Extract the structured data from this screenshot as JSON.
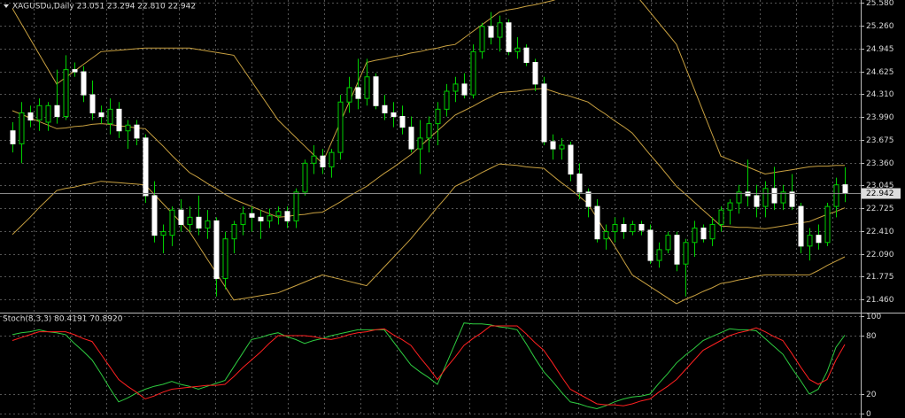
{
  "chart_data": [
    {
      "type": "candlestick",
      "title": "XAGUSDu,Daily  23.051 23.294 22.810 22.942",
      "open": [
        23.8,
        23.62,
        24.05,
        23.95,
        23.92,
        24.15,
        24.0,
        24.65,
        24.62,
        24.3,
        24.05,
        23.9,
        24.1,
        23.8,
        23.88,
        23.7,
        22.9,
        22.35,
        22.35,
        22.7,
        22.5,
        22.6,
        22.45,
        22.55,
        21.75,
        22.3,
        22.5,
        22.65,
        22.6,
        22.55,
        22.62,
        22.68,
        22.55,
        22.95,
        23.35,
        23.45,
        23.3,
        23.5,
        24.2,
        24.4,
        24.25,
        24.55,
        24.15,
        24.05,
        24.0,
        23.85,
        23.55,
        23.7,
        23.9,
        24.1,
        24.35,
        24.45,
        24.3,
        24.9,
        25.25,
        25.1,
        25.3,
        24.9,
        24.95,
        24.75,
        24.45,
        23.65,
        23.55,
        23.6,
        23.2,
        22.95,
        22.75,
        22.3,
        22.4,
        22.5,
        22.4,
        22.5,
        22.42,
        22.0,
        22.15,
        22.35,
        21.95,
        22.25,
        22.45,
        22.3,
        22.5,
        22.7,
        22.8,
        22.95,
        22.9,
        22.75,
        23.0,
        22.8,
        22.95,
        22.75,
        22.2,
        22.35,
        22.25,
        22.75,
        23.051
      ],
      "high": [
        23.92,
        24.2,
        24.15,
        24.25,
        24.2,
        24.65,
        24.85,
        24.75,
        24.7,
        24.5,
        24.15,
        24.25,
        24.2,
        23.95,
        23.95,
        23.75,
        23.1,
        22.5,
        22.75,
        22.85,
        22.75,
        22.9,
        22.7,
        22.6,
        22.4,
        22.55,
        22.75,
        22.75,
        22.7,
        22.72,
        22.75,
        22.75,
        23.0,
        23.4,
        23.6,
        23.55,
        23.55,
        24.3,
        24.55,
        24.8,
        24.8,
        24.6,
        24.3,
        24.2,
        24.15,
        24.0,
        23.95,
        24.0,
        24.2,
        24.45,
        24.55,
        24.6,
        25.0,
        25.3,
        25.45,
        25.4,
        25.35,
        25.1,
        25.0,
        24.8,
        24.55,
        23.75,
        23.7,
        23.65,
        23.35,
        23.0,
        22.85,
        22.5,
        22.6,
        22.6,
        22.55,
        22.55,
        22.5,
        22.25,
        22.4,
        22.4,
        22.3,
        22.55,
        22.5,
        22.6,
        22.75,
        22.85,
        23.05,
        23.4,
        23.05,
        23.1,
        23.3,
        23.05,
        23.2,
        22.8,
        22.45,
        22.5,
        22.8,
        23.15,
        23.294
      ],
      "low": [
        23.5,
        23.35,
        23.85,
        23.8,
        23.8,
        23.9,
        23.95,
        24.55,
        24.2,
        23.95,
        23.9,
        23.75,
        23.7,
        23.55,
        23.6,
        22.8,
        22.25,
        22.1,
        22.2,
        22.4,
        22.4,
        22.35,
        22.3,
        21.5,
        21.6,
        22.1,
        22.35,
        22.4,
        22.3,
        22.45,
        22.5,
        22.45,
        22.45,
        22.9,
        23.2,
        23.2,
        23.15,
        23.4,
        24.05,
        24.1,
        24.15,
        24.1,
        23.95,
        23.85,
        23.75,
        23.5,
        23.2,
        23.5,
        23.6,
        24.0,
        24.2,
        24.25,
        24.25,
        24.8,
        25.0,
        24.9,
        24.85,
        24.8,
        24.7,
        24.35,
        23.6,
        23.4,
        23.4,
        23.1,
        22.85,
        22.6,
        22.25,
        22.15,
        22.25,
        22.3,
        22.35,
        22.35,
        21.95,
        21.9,
        22.1,
        21.85,
        21.5,
        22.05,
        22.25,
        22.2,
        22.4,
        22.5,
        22.65,
        22.75,
        22.6,
        22.6,
        22.7,
        22.7,
        22.7,
        22.1,
        22.0,
        22.15,
        22.2,
        22.6,
        22.81
      ],
      "close": [
        23.62,
        24.05,
        23.95,
        24.15,
        24.15,
        24.0,
        24.65,
        24.62,
        24.3,
        24.05,
        24.0,
        24.1,
        23.8,
        23.88,
        23.7,
        22.9,
        22.35,
        22.4,
        22.7,
        22.5,
        22.6,
        22.45,
        22.55,
        21.75,
        22.3,
        22.5,
        22.65,
        22.6,
        22.55,
        22.62,
        22.68,
        22.55,
        22.95,
        23.35,
        23.45,
        23.3,
        23.5,
        24.2,
        24.4,
        24.25,
        24.55,
        24.15,
        24.05,
        24.0,
        23.85,
        23.55,
        23.7,
        23.9,
        24.1,
        24.35,
        24.45,
        24.3,
        24.9,
        25.25,
        25.1,
        25.3,
        24.9,
        24.95,
        24.75,
        24.45,
        23.65,
        23.55,
        23.6,
        23.2,
        22.95,
        22.75,
        22.3,
        22.4,
        22.5,
        22.4,
        22.5,
        22.42,
        22.0,
        22.15,
        22.35,
        21.95,
        22.25,
        22.45,
        22.3,
        22.5,
        22.7,
        22.8,
        22.95,
        22.9,
        22.75,
        23.0,
        22.8,
        22.95,
        22.75,
        22.2,
        22.35,
        22.25,
        22.75,
        23.05,
        22.942
      ],
      "up_color": "#00d000",
      "down_color": "#ffffff",
      "bands": {
        "color": "#c8a040",
        "upper": [
          25.5,
          25.29,
          25.08,
          24.87,
          24.66,
          24.45,
          24.54,
          24.63,
          24.72,
          24.81,
          24.9,
          24.91,
          24.92,
          24.93,
          24.94,
          24.95,
          24.95,
          24.95,
          24.95,
          24.95,
          24.95,
          24.93,
          24.91,
          24.89,
          24.87,
          24.85,
          24.67,
          24.49,
          24.31,
          24.13,
          23.95,
          23.83,
          23.71,
          23.59,
          23.47,
          23.35,
          23.63,
          23.91,
          24.19,
          24.47,
          24.75,
          24.78,
          24.8,
          24.83,
          24.85,
          24.88,
          24.9,
          24.93,
          24.95,
          24.98,
          25.0,
          25.09,
          25.18,
          25.27,
          25.36,
          25.45,
          25.48,
          25.5,
          25.53,
          25.55,
          25.58,
          25.61,
          25.65,
          25.68,
          25.72,
          25.75,
          25.75,
          25.75,
          25.75,
          25.75,
          25.75,
          25.6,
          25.45,
          25.3,
          25.15,
          25.0,
          24.69,
          24.38,
          24.07,
          23.76,
          23.45,
          23.4,
          23.35,
          23.3,
          23.25,
          23.2,
          23.22,
          23.24,
          23.26,
          23.28,
          23.3,
          23.31,
          23.31,
          23.32,
          23.32
        ],
        "middle": [
          24.08,
          24.03,
          23.98,
          23.93,
          23.88,
          23.83,
          23.84,
          23.86,
          23.87,
          23.89,
          23.9,
          23.89,
          23.87,
          23.86,
          23.84,
          23.83,
          23.71,
          23.59,
          23.46,
          23.34,
          23.22,
          23.15,
          23.07,
          23.0,
          22.92,
          22.85,
          22.8,
          22.75,
          22.7,
          22.65,
          22.6,
          22.61,
          22.63,
          22.64,
          22.66,
          22.67,
          22.74,
          22.81,
          22.89,
          22.96,
          23.03,
          23.12,
          23.21,
          23.29,
          23.38,
          23.47,
          23.58,
          23.69,
          23.8,
          23.91,
          24.02,
          24.08,
          24.14,
          24.21,
          24.27,
          24.33,
          24.34,
          24.35,
          24.37,
          24.38,
          24.39,
          24.35,
          24.31,
          24.28,
          24.24,
          24.2,
          24.11,
          24.03,
          23.94,
          23.86,
          23.77,
          23.62,
          23.47,
          23.33,
          23.18,
          23.03,
          22.92,
          22.81,
          22.7,
          22.59,
          22.48,
          22.47,
          22.46,
          22.46,
          22.45,
          22.44,
          22.46,
          22.48,
          22.5,
          22.52,
          22.54,
          22.59,
          22.64,
          22.68,
          22.73
        ],
        "lower": [
          22.36,
          22.48,
          22.6,
          22.73,
          22.85,
          22.97,
          23.0,
          23.02,
          23.05,
          23.07,
          23.1,
          23.09,
          23.08,
          23.07,
          23.06,
          23.05,
          22.92,
          22.79,
          22.66,
          22.53,
          22.4,
          22.21,
          22.02,
          21.83,
          21.64,
          21.45,
          21.47,
          21.49,
          21.51,
          21.53,
          21.55,
          21.6,
          21.65,
          21.7,
          21.75,
          21.8,
          21.77,
          21.74,
          21.71,
          21.68,
          21.65,
          21.78,
          21.91,
          22.04,
          22.17,
          22.3,
          22.45,
          22.59,
          22.74,
          22.88,
          23.03,
          23.09,
          23.15,
          23.22,
          23.28,
          23.34,
          23.33,
          23.32,
          23.3,
          23.29,
          23.28,
          23.18,
          23.08,
          22.99,
          22.89,
          22.79,
          22.59,
          22.39,
          22.2,
          22.0,
          21.8,
          21.72,
          21.64,
          21.56,
          21.48,
          21.4,
          21.46,
          21.51,
          21.57,
          21.62,
          21.68,
          21.7,
          21.73,
          21.75,
          21.78,
          21.8,
          21.8,
          21.8,
          21.8,
          21.8,
          21.8,
          21.86,
          21.93,
          21.99,
          22.05
        ]
      },
      "last_price": 22.942,
      "ylim": [
        21.288,
        25.617
      ],
      "yticks": [
        {
          "value": 25.58,
          "label": "25.580"
        },
        {
          "value": 25.26,
          "label": "25.260"
        },
        24.945,
        24.625,
        {
          "value": 24.31,
          "label": "24.310"
        },
        {
          "value": 23.99,
          "label": "23.990"
        },
        23.675,
        {
          "value": 23.36,
          "label": "23.360"
        },
        23.045,
        22.725,
        {
          "value": 22.41,
          "label": "22.410"
        },
        {
          "value": 22.09,
          "label": "22.090"
        },
        21.775,
        {
          "value": 21.46,
          "label": "21.460"
        }
      ],
      "grid": true
    },
    {
      "type": "line",
      "title": "Stoch(8,3,3) 80.4191 70.8920",
      "series": [
        {
          "color": "#2ecc40",
          "values": [
            81,
            83,
            84,
            86,
            84,
            83,
            81,
            72,
            64,
            55,
            41,
            26,
            12,
            16,
            21,
            25,
            28,
            30,
            33,
            30,
            28,
            25,
            28,
            31,
            34,
            48,
            62,
            76,
            78,
            81,
            83,
            79,
            76,
            72,
            75,
            77,
            80,
            82,
            84,
            86,
            86,
            86,
            86,
            74,
            62,
            50,
            43,
            37,
            30,
            51,
            72,
            93,
            92,
            92,
            91,
            89,
            88,
            86,
            72,
            57,
            43,
            33,
            22,
            12,
            10,
            7,
            5,
            8,
            12,
            15,
            17,
            18,
            20,
            31,
            41,
            52,
            60,
            67,
            75,
            79,
            83,
            87,
            86,
            86,
            85,
            77,
            69,
            61,
            47,
            34,
            20,
            25,
            43,
            68,
            80.4191
          ]
        },
        {
          "color": "#ff2020",
          "values": [
            75,
            78,
            81,
            84,
            84,
            84,
            84,
            81,
            77,
            74,
            61,
            48,
            35,
            28,
            22,
            15,
            18,
            22,
            25,
            26,
            27,
            28,
            29,
            29,
            30,
            38,
            47,
            55,
            63,
            72,
            80,
            80,
            80,
            80,
            79,
            77,
            76,
            78,
            81,
            83,
            84,
            86,
            87,
            81,
            76,
            70,
            58,
            47,
            35,
            47,
            58,
            70,
            77,
            83,
            90,
            90,
            90,
            90,
            82,
            73,
            65,
            52,
            38,
            25,
            20,
            15,
            10,
            9,
            9,
            8,
            10,
            13,
            15,
            22,
            28,
            35,
            45,
            55,
            65,
            70,
            75,
            80,
            83,
            85,
            88,
            84,
            79,
            75,
            62,
            48,
            35,
            30,
            35,
            55,
            70.892
          ]
        }
      ],
      "ylim": [
        -2.7,
        101.8
      ],
      "yticks": [
        100,
        80,
        20,
        0
      ],
      "grid": true
    }
  ]
}
